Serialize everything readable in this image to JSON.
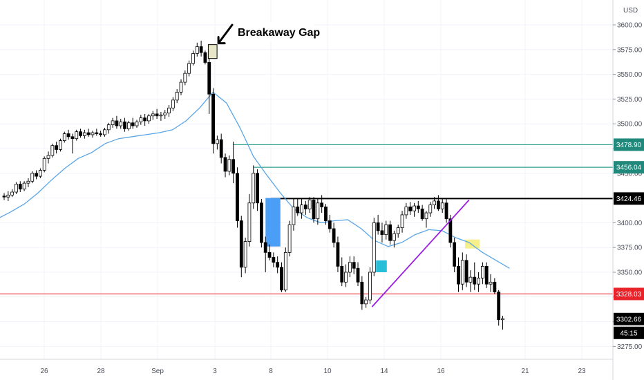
{
  "chart_data": {
    "type": "candlestick",
    "currency": "USD",
    "ylim": [
      3262,
      3618
    ],
    "y_ticks": [
      "3600.00",
      "3575.00",
      "3550.00",
      "3525.00",
      "3500.00",
      "3475.00",
      "3450.00",
      "3425.00",
      "3400.00",
      "3375.00",
      "3350.00",
      "3325.00",
      "3300.00",
      "3275.00"
    ],
    "x_ticks": [
      "26",
      "28",
      "Sep",
      "3",
      "8",
      "10",
      "14",
      "16",
      "21",
      "23"
    ],
    "horizontal_levels": [
      {
        "label": "3478.90",
        "value": 3478.9,
        "color": "#2e9c8e",
        "badge_color": "#21897b",
        "x_start": 0.5
      },
      {
        "label": "3456.04",
        "value": 3456.04,
        "color": "#2e9c8e",
        "badge_color": "#21897b",
        "x_start": 0.55
      },
      {
        "label": "3424.46",
        "value": 3424.46,
        "color": "#000000",
        "badge_color": "#000000",
        "x_start": 0.0
      },
      {
        "label": "3328.03",
        "value": 3328.03,
        "color": "#e8232a",
        "badge_color": "#e8232a",
        "x_start": -20
      }
    ],
    "last_price": {
      "label": "3302.66",
      "value": 3302.66,
      "color": "#000000"
    },
    "countdown": "45:15",
    "annotation": {
      "text": "Breakaway Gap",
      "x": 16.0,
      "value": 3593
    },
    "gap_box": {
      "x0": 15.15,
      "x1": 15.8,
      "value_top": 3580,
      "value_bottom": 3566,
      "color": "#e8e6c8"
    },
    "zones": [
      {
        "x0": 19.4,
        "x1": 20.5,
        "value_top": 3425,
        "value_bottom": 3376,
        "color": "#4a9ef5"
      },
      {
        "x0": 27.6,
        "x1": 28.4,
        "value_top": 3362,
        "value_bottom": 3350,
        "color": "#27bfd8"
      },
      {
        "x0": 34.2,
        "x1": 35.3,
        "value_top": 3383,
        "value_bottom": 3374,
        "color": "#f5f08a"
      }
    ],
    "trendline": {
      "x0": 27.3,
      "v0": 3315,
      "x1": 34.5,
      "v1": 3423,
      "color": "#9b1ee0"
    },
    "ema": {
      "name": "",
      "color": "#5aa5e6",
      "x": [
        -1.2,
        -0.5,
        0.5,
        1.5,
        2.5,
        3.5,
        4.5,
        5.5,
        6.5,
        7.5,
        8.5,
        9.5,
        10.5,
        11.5,
        12.5,
        13.5,
        14.5,
        15.5,
        16.5,
        17.5,
        18.5,
        19.5,
        20.5,
        21.5,
        22.5,
        23.5,
        24.5,
        25.5,
        26.5,
        27.5,
        28.5,
        29.5,
        30.5,
        31.5,
        32.5,
        33.5,
        34.5,
        35.5,
        36.5,
        37.5
      ],
      "values": [
        3400,
        3404,
        3411,
        3419,
        3430,
        3443,
        3455,
        3465,
        3471,
        3480,
        3485,
        3487,
        3489,
        3491,
        3494,
        3503,
        3516,
        3532,
        3521,
        3496,
        3467,
        3448,
        3430,
        3414,
        3405,
        3400,
        3402,
        3403,
        3394,
        3382,
        3376,
        3380,
        3388,
        3393,
        3392,
        3385,
        3380,
        3370,
        3362,
        3354
      ]
    },
    "candles": [
      [
        3427,
        3430,
        3423,
        3426
      ],
      [
        3426,
        3432,
        3422,
        3428
      ],
      [
        3428,
        3434,
        3426,
        3431
      ],
      [
        3431,
        3441,
        3429,
        3439
      ],
      [
        3439,
        3442,
        3431,
        3434
      ],
      [
        3434,
        3442,
        3432,
        3440
      ],
      [
        3440,
        3445,
        3436,
        3442
      ],
      [
        3442,
        3452,
        3440,
        3450
      ],
      [
        3450,
        3453,
        3444,
        3447
      ],
      [
        3447,
        3455,
        3445,
        3453
      ],
      [
        3453,
        3467,
        3451,
        3465
      ],
      [
        3465,
        3472,
        3460,
        3468
      ],
      [
        3468,
        3480,
        3466,
        3478
      ],
      [
        3478,
        3482,
        3470,
        3474
      ],
      [
        3474,
        3485,
        3472,
        3483
      ],
      [
        3483,
        3492,
        3481,
        3490
      ],
      [
        3490,
        3494,
        3484,
        3487
      ],
      [
        3487,
        3490,
        3470,
        3485
      ],
      [
        3485,
        3494,
        3483,
        3492
      ],
      [
        3492,
        3495,
        3486,
        3488
      ],
      [
        3488,
        3494,
        3485,
        3491
      ],
      [
        3491,
        3495,
        3487,
        3489
      ],
      [
        3489,
        3493,
        3486,
        3491
      ],
      [
        3491,
        3495,
        3488,
        3490
      ],
      [
        3490,
        3493,
        3487,
        3489
      ],
      [
        3489,
        3496,
        3487,
        3494
      ],
      [
        3494,
        3501,
        3490,
        3499
      ],
      [
        3499,
        3506,
        3496,
        3503
      ],
      [
        3503,
        3508,
        3495,
        3498
      ],
      [
        3498,
        3505,
        3495,
        3502
      ],
      [
        3502,
        3506,
        3492,
        3495
      ],
      [
        3495,
        3503,
        3493,
        3501
      ],
      [
        3501,
        3506,
        3495,
        3498
      ],
      [
        3498,
        3504,
        3496,
        3502
      ],
      [
        3502,
        3509,
        3499,
        3506
      ],
      [
        3506,
        3510,
        3498,
        3503
      ],
      [
        3503,
        3510,
        3500,
        3508
      ],
      [
        3508,
        3513,
        3504,
        3510
      ],
      [
        3510,
        3515,
        3505,
        3508
      ],
      [
        3508,
        3512,
        3503,
        3509
      ],
      [
        3509,
        3514,
        3505,
        3511
      ],
      [
        3511,
        3519,
        3507,
        3516
      ],
      [
        3516,
        3527,
        3513,
        3524
      ],
      [
        3524,
        3535,
        3521,
        3532
      ],
      [
        3532,
        3545,
        3529,
        3542
      ],
      [
        3542,
        3554,
        3539,
        3551
      ],
      [
        3551,
        3564,
        3548,
        3561
      ],
      [
        3561,
        3574,
        3559,
        3571
      ],
      [
        3571,
        3582,
        3568,
        3578
      ],
      [
        3578,
        3584,
        3568,
        3572
      ],
      [
        3572,
        3574,
        3560,
        3562
      ],
      [
        3562,
        3566,
        3510,
        3530
      ],
      [
        3530,
        3536,
        3470,
        3480
      ],
      [
        3480,
        3488,
        3474,
        3484
      ],
      [
        3484,
        3490,
        3460,
        3466
      ],
      [
        3466,
        3470,
        3446,
        3452
      ],
      [
        3452,
        3468,
        3448,
        3464
      ],
      [
        3464,
        3482,
        3440,
        3450
      ],
      [
        3450,
        3456,
        3395,
        3402
      ],
      [
        3402,
        3407,
        3345,
        3355
      ],
      [
        3355,
        3385,
        3349,
        3381
      ],
      [
        3381,
        3429,
        3376,
        3420
      ],
      [
        3420,
        3458,
        3414,
        3450
      ],
      [
        3450,
        3454,
        3412,
        3420
      ],
      [
        3420,
        3424,
        3375,
        3380
      ],
      [
        3380,
        3386,
        3350,
        3370
      ],
      [
        3370,
        3378,
        3362,
        3365
      ],
      [
        3365,
        3370,
        3355,
        3360
      ],
      [
        3360,
        3366,
        3349,
        3355
      ],
      [
        3355,
        3360,
        3330,
        3332
      ],
      [
        3332,
        3375,
        3330,
        3370
      ],
      [
        3370,
        3402,
        3366,
        3398
      ],
      [
        3398,
        3425,
        3392,
        3416
      ],
      [
        3416,
        3424,
        3407,
        3410
      ],
      [
        3410,
        3424,
        3404,
        3418
      ],
      [
        3418,
        3422,
        3408,
        3414
      ],
      [
        3414,
        3426,
        3410,
        3423
      ],
      [
        3423,
        3426,
        3400,
        3404
      ],
      [
        3404,
        3425,
        3398,
        3420
      ],
      [
        3420,
        3428,
        3410,
        3416
      ],
      [
        3416,
        3419,
        3398,
        3402
      ],
      [
        3402,
        3408,
        3390,
        3394
      ],
      [
        3394,
        3400,
        3375,
        3380
      ],
      [
        3380,
        3386,
        3350,
        3356
      ],
      [
        3356,
        3365,
        3336,
        3340
      ],
      [
        3340,
        3358,
        3335,
        3350
      ],
      [
        3350,
        3366,
        3345,
        3360
      ],
      [
        3360,
        3366,
        3348,
        3354
      ],
      [
        3354,
        3360,
        3336,
        3340
      ],
      [
        3340,
        3346,
        3312,
        3318
      ],
      [
        3318,
        3325,
        3314,
        3322
      ],
      [
        3322,
        3355,
        3318,
        3350
      ],
      [
        3350,
        3405,
        3346,
        3400
      ],
      [
        3400,
        3408,
        3388,
        3392
      ],
      [
        3392,
        3400,
        3380,
        3388
      ],
      [
        3388,
        3402,
        3383,
        3398
      ],
      [
        3398,
        3402,
        3378,
        3382
      ],
      [
        3382,
        3392,
        3375,
        3389
      ],
      [
        3389,
        3398,
        3385,
        3395
      ],
      [
        3395,
        3412,
        3390,
        3408
      ],
      [
        3408,
        3420,
        3404,
        3416
      ],
      [
        3416,
        3421,
        3408,
        3412
      ],
      [
        3412,
        3420,
        3406,
        3417
      ],
      [
        3417,
        3422,
        3410,
        3414
      ],
      [
        3414,
        3418,
        3402,
        3404
      ],
      [
        3404,
        3412,
        3395,
        3410
      ],
      [
        3410,
        3421,
        3406,
        3418
      ],
      [
        3418,
        3426,
        3414,
        3422
      ],
      [
        3422,
        3428,
        3412,
        3414
      ],
      [
        3414,
        3424,
        3410,
        3420
      ],
      [
        3420,
        3425,
        3400,
        3404
      ],
      [
        3404,
        3408,
        3375,
        3380
      ],
      [
        3380,
        3385,
        3350,
        3356
      ],
      [
        3356,
        3365,
        3330,
        3338
      ],
      [
        3338,
        3370,
        3332,
        3362
      ],
      [
        3362,
        3368,
        3335,
        3340
      ],
      [
        3340,
        3352,
        3330,
        3345
      ],
      [
        3345,
        3360,
        3332,
        3338
      ],
      [
        3338,
        3350,
        3330,
        3344
      ],
      [
        3344,
        3360,
        3338,
        3356
      ],
      [
        3356,
        3360,
        3334,
        3338
      ],
      [
        3338,
        3348,
        3330,
        3340
      ],
      [
        3340,
        3344,
        3328,
        3330
      ],
      [
        3330,
        3332,
        3296,
        3302
      ],
      [
        3302,
        3306,
        3292,
        3303
      ]
    ]
  }
}
